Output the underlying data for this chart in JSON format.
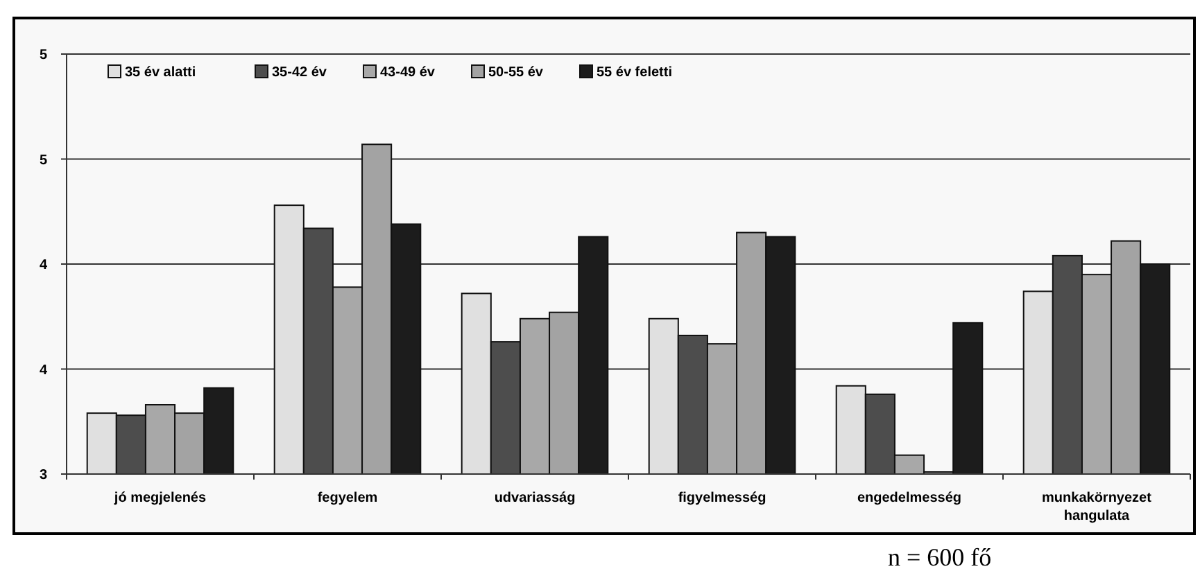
{
  "chart_data": {
    "type": "bar",
    "categories": [
      "jó megjelenés",
      "fegyelem",
      "udvariasság",
      "figyelmesség",
      "engedelmesség",
      "munkakörnyezet hangulata"
    ],
    "series": [
      {
        "name": "35 év alatti",
        "color": "#e0e0e0",
        "values": [
          3.29,
          4.28,
          3.86,
          3.74,
          3.42,
          3.87
        ]
      },
      {
        "name": "35-42 év",
        "color": "#4d4d4d",
        "values": [
          3.28,
          4.17,
          3.63,
          3.66,
          3.38,
          4.04
        ]
      },
      {
        "name": "43-49 év",
        "color": "#a8a8a8",
        "values": [
          3.33,
          3.89,
          3.74,
          3.62,
          3.09,
          3.95
        ]
      },
      {
        "name": "50-55 év",
        "color": "#a3a3a3",
        "values": [
          3.29,
          4.57,
          3.77,
          4.15,
          3.01,
          4.11
        ]
      },
      {
        "name": "55 év feletti",
        "color": "#1c1c1c",
        "values": [
          3.41,
          4.19,
          4.13,
          4.13,
          3.72,
          4.0
        ]
      }
    ],
    "ylim": [
      3,
      5
    ],
    "yticks": [
      {
        "value": 3,
        "label": "3"
      },
      {
        "value": 3.5,
        "label": "4"
      },
      {
        "value": 4,
        "label": "4"
      },
      {
        "value": 4.5,
        "label": "5"
      },
      {
        "value": 5,
        "label": "5"
      }
    ],
    "grid": "y",
    "legend": "top left",
    "annotations": [
      "n = 600 fő"
    ]
  }
}
